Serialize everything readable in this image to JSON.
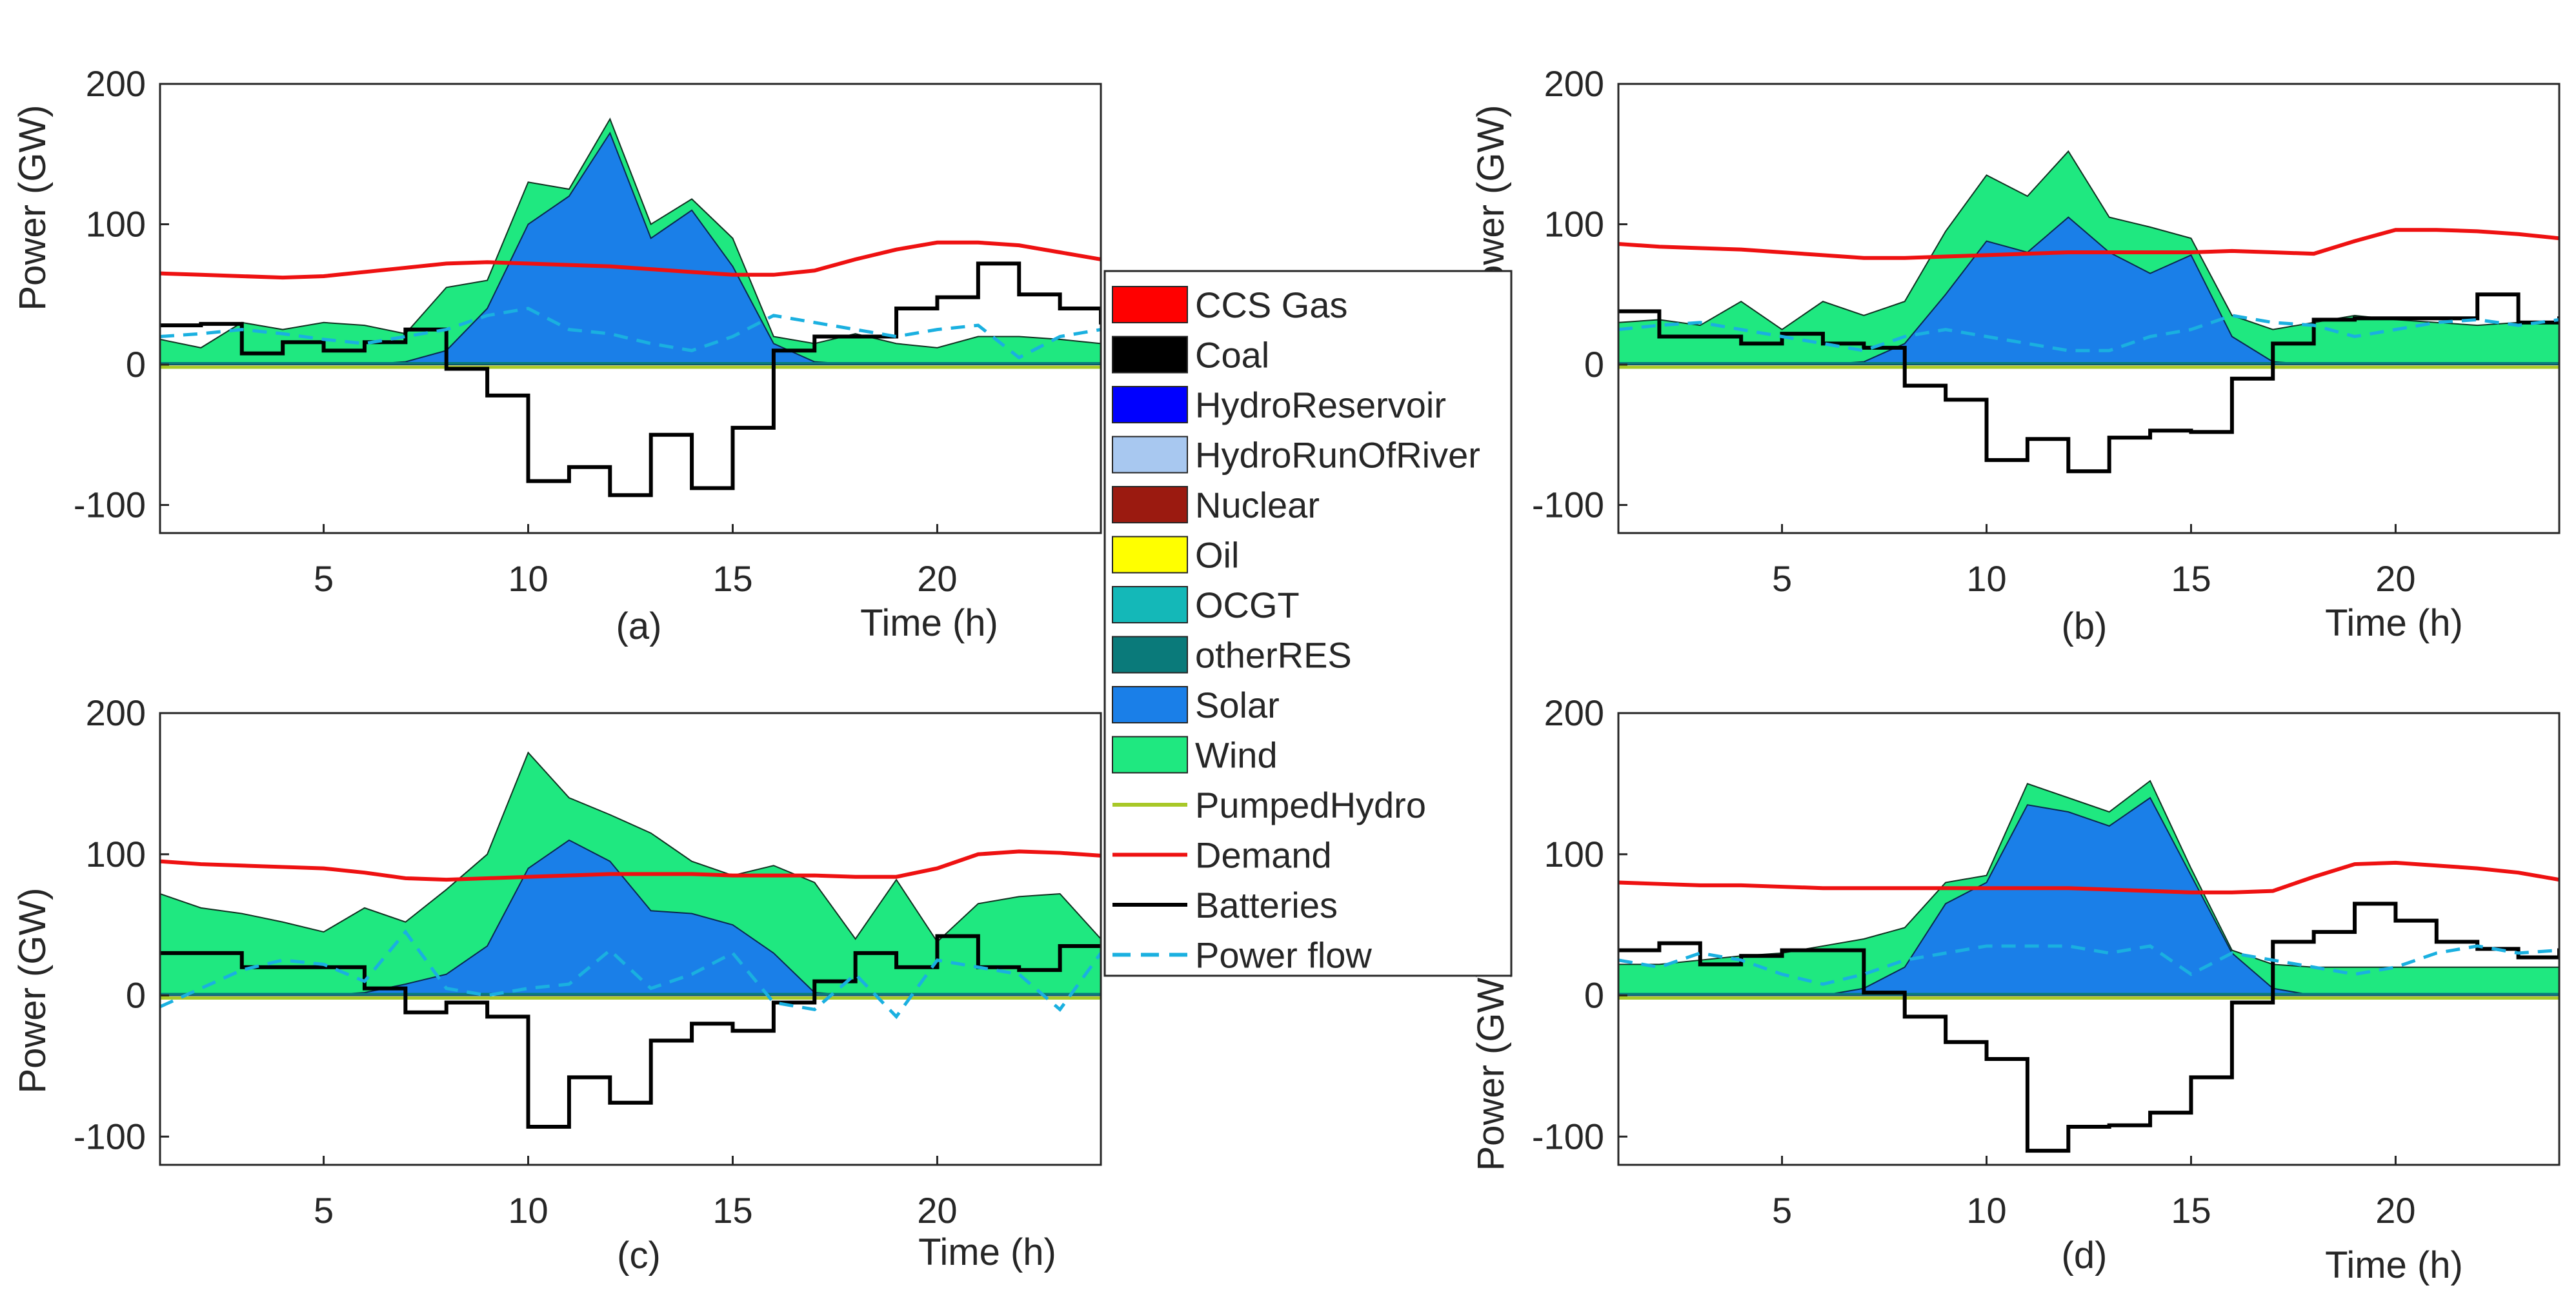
{
  "chart_data": [
    {
      "type": "area",
      "panel": "(a)",
      "xlabel": "Time (h)",
      "ylabel": "Power (GW)",
      "xlim": [
        1,
        24
      ],
      "ylim": [
        -120,
        200
      ],
      "xticks": [
        5,
        10,
        15,
        20
      ],
      "yticks": [
        -100,
        0,
        100,
        200
      ],
      "x": [
        1,
        2,
        3,
        4,
        5,
        6,
        7,
        8,
        9,
        10,
        11,
        12,
        13,
        14,
        15,
        16,
        17,
        18,
        19,
        20,
        21,
        22,
        23,
        24
      ],
      "solar": [
        0,
        0,
        0,
        0,
        0,
        0,
        2,
        10,
        40,
        100,
        120,
        165,
        90,
        110,
        70,
        15,
        2,
        0,
        0,
        0,
        0,
        0,
        0,
        0
      ],
      "wind": [
        18,
        12,
        30,
        25,
        30,
        28,
        22,
        55,
        60,
        130,
        125,
        175,
        100,
        118,
        90,
        20,
        15,
        22,
        15,
        12,
        20,
        20,
        18,
        15
      ],
      "demand": [
        65,
        64,
        63,
        62,
        63,
        66,
        69,
        72,
        73,
        72,
        71,
        70,
        68,
        66,
        64,
        64,
        67,
        75,
        82,
        87,
        87,
        85,
        80,
        75
      ],
      "batteries": [
        28,
        29,
        8,
        16,
        10,
        16,
        25,
        -3,
        -22,
        -83,
        -73,
        -93,
        -50,
        -88,
        -45,
        10,
        20,
        20,
        40,
        48,
        72,
        50,
        40,
        30
      ],
      "power_flow": [
        20,
        22,
        25,
        22,
        18,
        15,
        20,
        25,
        35,
        40,
        25,
        22,
        15,
        10,
        20,
        35,
        30,
        25,
        20,
        25,
        28,
        5,
        20,
        25
      ]
    },
    {
      "type": "area",
      "panel": "(b)",
      "xlabel": "Time (h)",
      "ylabel": "Power (GW)",
      "xlim": [
        1,
        24
      ],
      "ylim": [
        -120,
        200
      ],
      "xticks": [
        5,
        10,
        15,
        20
      ],
      "yticks": [
        -100,
        0,
        100,
        200
      ],
      "x": [
        1,
        2,
        3,
        4,
        5,
        6,
        7,
        8,
        9,
        10,
        11,
        12,
        13,
        14,
        15,
        16,
        17,
        18,
        19,
        20,
        21,
        22,
        23,
        24
      ],
      "solar": [
        0,
        0,
        0,
        0,
        0,
        0,
        2,
        15,
        50,
        88,
        80,
        105,
        80,
        65,
        78,
        20,
        2,
        0,
        0,
        0,
        0,
        0,
        0,
        0
      ],
      "wind": [
        30,
        32,
        28,
        45,
        25,
        45,
        35,
        45,
        95,
        135,
        120,
        152,
        105,
        98,
        90,
        35,
        25,
        30,
        35,
        32,
        30,
        28,
        30,
        30
      ],
      "demand": [
        86,
        84,
        83,
        82,
        80,
        78,
        76,
        76,
        77,
        78,
        79,
        80,
        80,
        80,
        80,
        81,
        80,
        79,
        88,
        96,
        96,
        95,
        93,
        90
      ],
      "batteries": [
        38,
        20,
        20,
        15,
        22,
        15,
        12,
        -15,
        -25,
        -68,
        -53,
        -76,
        -52,
        -47,
        -48,
        -10,
        15,
        32,
        33,
        33,
        33,
        50,
        30,
        33
      ],
      "power_flow": [
        25,
        28,
        30,
        25,
        20,
        15,
        10,
        20,
        25,
        20,
        15,
        10,
        10,
        20,
        25,
        35,
        30,
        28,
        20,
        25,
        30,
        32,
        28,
        32
      ]
    },
    {
      "type": "area",
      "panel": "(c)",
      "xlabel": "Time (h)",
      "ylabel": "Power (GW)",
      "xlim": [
        1,
        24
      ],
      "ylim": [
        -120,
        200
      ],
      "xticks": [
        5,
        10,
        15,
        20
      ],
      "yticks": [
        -100,
        0,
        100,
        200
      ],
      "x": [
        1,
        2,
        3,
        4,
        5,
        6,
        7,
        8,
        9,
        10,
        11,
        12,
        13,
        14,
        15,
        16,
        17,
        18,
        19,
        20,
        21,
        22,
        23,
        24
      ],
      "solar": [
        0,
        0,
        0,
        0,
        0,
        2,
        8,
        15,
        35,
        90,
        110,
        95,
        60,
        58,
        50,
        30,
        2,
        0,
        0,
        0,
        0,
        0,
        0,
        0
      ],
      "wind": [
        72,
        62,
        58,
        52,
        45,
        62,
        52,
        75,
        100,
        172,
        140,
        128,
        115,
        95,
        85,
        92,
        80,
        40,
        82,
        38,
        65,
        70,
        72,
        40
      ],
      "demand": [
        95,
        93,
        92,
        91,
        90,
        87,
        83,
        82,
        83,
        84,
        85,
        86,
        86,
        86,
        85,
        85,
        85,
        84,
        84,
        90,
        100,
        102,
        101,
        99
      ],
      "batteries": [
        30,
        30,
        20,
        20,
        20,
        5,
        -12,
        -5,
        -15,
        -93,
        -58,
        -76,
        -32,
        -20,
        -25,
        -5,
        10,
        30,
        20,
        42,
        20,
        18,
        35,
        35
      ],
      "power_flow": [
        -8,
        5,
        18,
        25,
        22,
        10,
        45,
        5,
        0,
        5,
        8,
        32,
        5,
        15,
        30,
        -5,
        -10,
        15,
        -15,
        25,
        20,
        15,
        -10,
        30
      ]
    },
    {
      "type": "area",
      "panel": "(d)",
      "xlabel": "Time (h)",
      "ylabel": "Power (GW)",
      "xlim": [
        1,
        24
      ],
      "ylim": [
        -120,
        200
      ],
      "xticks": [
        5,
        10,
        15,
        20
      ],
      "yticks": [
        -100,
        0,
        100,
        200
      ],
      "x": [
        1,
        2,
        3,
        4,
        5,
        6,
        7,
        8,
        9,
        10,
        11,
        12,
        13,
        14,
        15,
        16,
        17,
        18,
        19,
        20,
        21,
        22,
        23,
        24
      ],
      "solar": [
        0,
        0,
        0,
        0,
        0,
        0,
        5,
        20,
        65,
        80,
        135,
        130,
        120,
        140,
        85,
        30,
        5,
        0,
        0,
        0,
        0,
        0,
        0,
        0
      ],
      "wind": [
        22,
        22,
        25,
        28,
        30,
        35,
        40,
        48,
        80,
        85,
        150,
        140,
        130,
        152,
        90,
        32,
        22,
        20,
        20,
        20,
        20,
        20,
        20,
        20
      ],
      "demand": [
        80,
        79,
        78,
        78,
        77,
        76,
        76,
        76,
        76,
        76,
        76,
        76,
        75,
        74,
        73,
        73,
        74,
        84,
        93,
        94,
        92,
        90,
        87,
        82
      ],
      "batteries": [
        32,
        37,
        22,
        28,
        32,
        32,
        2,
        -15,
        -33,
        -45,
        -110,
        -93,
        -92,
        -83,
        -58,
        -5,
        38,
        45,
        65,
        53,
        38,
        33,
        27,
        32
      ],
      "power_flow": [
        25,
        20,
        30,
        25,
        15,
        8,
        15,
        25,
        30,
        35,
        35,
        35,
        30,
        35,
        15,
        30,
        25,
        20,
        15,
        20,
        30,
        35,
        30,
        32
      ]
    }
  ],
  "legend": {
    "entries": [
      {
        "label": "CCS Gas",
        "kind": "patch",
        "color": "#ff0000"
      },
      {
        "label": "Coal",
        "kind": "patch",
        "color": "#000000"
      },
      {
        "label": "HydroReservoir",
        "kind": "patch",
        "color": "#0000ff"
      },
      {
        "label": "HydroRunOfRiver",
        "kind": "patch",
        "color": "#a8c8f0"
      },
      {
        "label": "Nuclear",
        "kind": "patch",
        "color": "#9b1a10"
      },
      {
        "label": "Oil",
        "kind": "patch",
        "color": "#ffff00"
      },
      {
        "label": "OCGT",
        "kind": "patch",
        "color": "#14b8b8"
      },
      {
        "label": "otherRES",
        "kind": "patch",
        "color": "#0a7a7a"
      },
      {
        "label": "Solar",
        "kind": "patch",
        "color": "#1a7fe8"
      },
      {
        "label": "Wind",
        "kind": "patch",
        "color": "#1fe880"
      },
      {
        "label": "PumpedHydro",
        "kind": "line",
        "color": "#a8c828"
      },
      {
        "label": "Demand",
        "kind": "line",
        "color": "#ee1111"
      },
      {
        "label": "Batteries",
        "kind": "line",
        "color": "#000000"
      },
      {
        "label": "Power flow",
        "kind": "dash",
        "color": "#1ab0e0"
      }
    ]
  }
}
